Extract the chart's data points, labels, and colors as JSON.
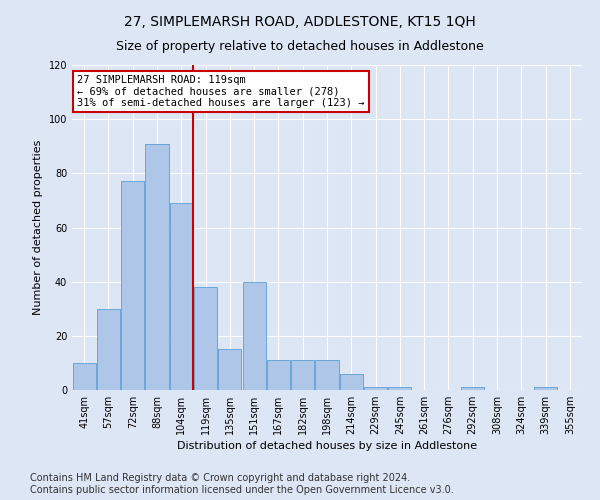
{
  "title": "27, SIMPLEMARSH ROAD, ADDLESTONE, KT15 1QH",
  "subtitle": "Size of property relative to detached houses in Addlestone",
  "xlabel": "Distribution of detached houses by size in Addlestone",
  "ylabel": "Number of detached properties",
  "categories": [
    "41sqm",
    "57sqm",
    "72sqm",
    "88sqm",
    "104sqm",
    "119sqm",
    "135sqm",
    "151sqm",
    "167sqm",
    "182sqm",
    "198sqm",
    "214sqm",
    "229sqm",
    "245sqm",
    "261sqm",
    "276sqm",
    "292sqm",
    "308sqm",
    "324sqm",
    "339sqm",
    "355sqm"
  ],
  "values": [
    10,
    30,
    77,
    91,
    69,
    38,
    15,
    40,
    11,
    11,
    11,
    6,
    1,
    1,
    0,
    0,
    1,
    0,
    0,
    1,
    0
  ],
  "bar_color": "#aec6e8",
  "bar_edge_color": "#5a9fd4",
  "highlight_index": 5,
  "highlight_color": "#cc0000",
  "ylim": [
    0,
    120
  ],
  "yticks": [
    0,
    20,
    40,
    60,
    80,
    100,
    120
  ],
  "annotation_text": "27 SIMPLEMARSH ROAD: 119sqm\n← 69% of detached houses are smaller (278)\n31% of semi-detached houses are larger (123) →",
  "annotation_box_color": "#ffffff",
  "annotation_box_edge": "#cc0000",
  "footer_line1": "Contains HM Land Registry data © Crown copyright and database right 2024.",
  "footer_line2": "Contains public sector information licensed under the Open Government Licence v3.0.",
  "background_color": "#dce6f5",
  "plot_background": "#dce6f5",
  "title_fontsize": 10,
  "subtitle_fontsize": 9,
  "axis_label_fontsize": 8,
  "tick_fontsize": 7,
  "footer_fontsize": 7,
  "annotation_fontsize": 7.5
}
